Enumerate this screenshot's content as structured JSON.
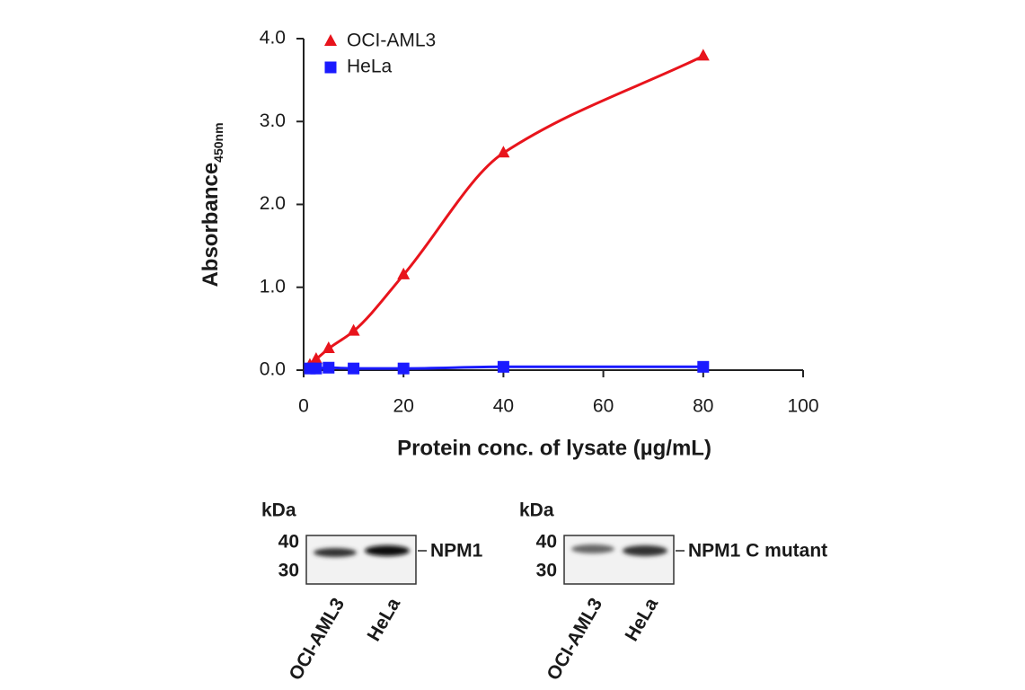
{
  "chart_data": {
    "type": "scatter",
    "y_label": "Absorbance",
    "y_label_sub": "450nm",
    "x_label": "Protein conc. of lysate (µg/mL)",
    "xlim": [
      0,
      100
    ],
    "xticks": [
      0,
      20,
      40,
      60,
      80,
      100
    ],
    "ylim": [
      0,
      4
    ],
    "yticks": [
      {
        "value": 0,
        "label": "0.0"
      },
      {
        "value": 1,
        "label": "1.0"
      },
      {
        "value": 2,
        "label": "2.0"
      },
      {
        "value": 3,
        "label": "3.0"
      },
      {
        "value": 4,
        "label": "4.0"
      }
    ],
    "legend": "top-left",
    "series": [
      {
        "name": "OCI-AML3",
        "color": "#e8141c",
        "marker": "triangle",
        "x": [
          1.25,
          2.5,
          5,
          10,
          20,
          40,
          80
        ],
        "values": [
          0.06,
          0.13,
          0.26,
          0.47,
          1.15,
          2.62,
          3.79
        ]
      },
      {
        "name": "HeLa",
        "color": "#1a1aff",
        "marker": "square",
        "x": [
          1.25,
          2.5,
          5,
          10,
          20,
          40,
          80
        ],
        "values": [
          0.02,
          0.02,
          0.03,
          0.02,
          0.02,
          0.04,
          0.04
        ]
      }
    ]
  },
  "blots": [
    {
      "unit": "kDa",
      "markers": [
        "40",
        "30"
      ],
      "band_label": "NPM1",
      "lanes": [
        "OCI-AML3",
        "HeLa"
      ]
    },
    {
      "unit": "kDa",
      "markers": [
        "40",
        "30"
      ],
      "band_label": "NPM1 C mutant",
      "lanes": [
        "OCI-AML3",
        "HeLa"
      ]
    }
  ]
}
